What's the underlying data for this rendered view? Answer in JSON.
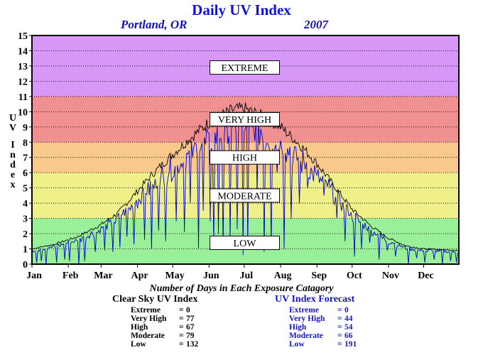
{
  "header": {
    "title": "Daily UV Index",
    "location": "Portland, OR",
    "year": "2007"
  },
  "stats": {
    "title": "Number of Days in Each Exposure Catagory",
    "clear_sky": {
      "title": "Clear Sky UV Index",
      "rows": [
        {
          "label": "Extreme",
          "eq": "=",
          "value": "0"
        },
        {
          "label": "Very High",
          "eq": "=",
          "value": "77"
        },
        {
          "label": "High",
          "eq": "=",
          "value": "67"
        },
        {
          "label": "Moderate",
          "eq": "=",
          "value": "79"
        },
        {
          "label": "Low",
          "eq": "=",
          "value": "132"
        }
      ]
    },
    "forecast": {
      "title": "UV Index Forecast",
      "rows": [
        {
          "label": "Extreme",
          "eq": "=",
          "value": "0"
        },
        {
          "label": "Very High",
          "eq": "=",
          "value": "44"
        },
        {
          "label": "High",
          "eq": "=",
          "value": "54"
        },
        {
          "label": "Moderate",
          "eq": "=",
          "value": "66"
        },
        {
          "label": "Low",
          "eq": "=",
          "value": "191"
        }
      ]
    }
  },
  "chart_data": {
    "type": "line",
    "ylabel": "UV Index",
    "ylim": [
      0,
      15
    ],
    "xlim": [
      1,
      365
    ],
    "months": [
      "Jan",
      "Feb",
      "Mar",
      "Apr",
      "May",
      "Jun",
      "Jul",
      "Aug",
      "Sep",
      "Oct",
      "Nov",
      "Dec"
    ],
    "month_start_days": [
      1,
      32,
      60,
      91,
      121,
      152,
      182,
      213,
      244,
      274,
      305,
      335
    ],
    "y_ticks": [
      0,
      1,
      2,
      3,
      4,
      5,
      6,
      7,
      8,
      9,
      10,
      11,
      12,
      13,
      14,
      15
    ],
    "categories": [
      {
        "label": "LOW",
        "from": 0,
        "to": 3,
        "color": "#99f099"
      },
      {
        "label": "MODERATE",
        "from": 3,
        "to": 6,
        "color": "#f0f08a"
      },
      {
        "label": "HIGH",
        "from": 6,
        "to": 8,
        "color": "#f8c98a"
      },
      {
        "label": "VERY HIGH",
        "from": 8,
        "to": 11,
        "color": "#f09090"
      },
      {
        "label": "EXTREME",
        "from": 11,
        "to": 15,
        "color": "#d898f8"
      }
    ],
    "clear_sky_envelope": {
      "name": "Clear Sky UV Index",
      "color": "#000000",
      "points": [
        [
          1,
          1.0
        ],
        [
          20,
          1.3
        ],
        [
          40,
          1.8
        ],
        [
          60,
          2.6
        ],
        [
          75,
          3.4
        ],
        [
          91,
          4.8
        ],
        [
          105,
          6.0
        ],
        [
          121,
          7.2
        ],
        [
          135,
          8.2
        ],
        [
          152,
          9.3
        ],
        [
          172,
          10.1
        ],
        [
          182,
          10.2
        ],
        [
          200,
          9.6
        ],
        [
          213,
          9.0
        ],
        [
          230,
          7.8
        ],
        [
          244,
          6.6
        ],
        [
          260,
          5.0
        ],
        [
          274,
          3.6
        ],
        [
          290,
          2.5
        ],
        [
          305,
          1.7
        ],
        [
          320,
          1.2
        ],
        [
          335,
          1.0
        ],
        [
          365,
          0.9
        ]
      ]
    },
    "forecast": {
      "name": "UV Index Forecast",
      "color": "#0000cc",
      "dips": [
        [
          5,
          0.1
        ],
        [
          9,
          0.2
        ],
        [
          13,
          0.0
        ],
        [
          22,
          0.1
        ],
        [
          29,
          0.3
        ],
        [
          33,
          0.2
        ],
        [
          41,
          0.0
        ],
        [
          46,
          0.2
        ],
        [
          55,
          0.8
        ],
        [
          63,
          0.9
        ],
        [
          70,
          0.8
        ],
        [
          76,
          1.1
        ],
        [
          82,
          1.8
        ],
        [
          88,
          1.3
        ],
        [
          97,
          1.6
        ],
        [
          103,
          1.0
        ],
        [
          109,
          2.2
        ],
        [
          115,
          1.5
        ],
        [
          124,
          2.8
        ],
        [
          131,
          2.1
        ],
        [
          136,
          4.0
        ],
        [
          143,
          1.0
        ],
        [
          147,
          3.5
        ],
        [
          153,
          2.8
        ],
        [
          156,
          1.2
        ],
        [
          160,
          2.0
        ],
        [
          164,
          1.0
        ],
        [
          170,
          1.5
        ],
        [
          176,
          2.3
        ],
        [
          181,
          0.6
        ],
        [
          185,
          1.0
        ],
        [
          193,
          4.5
        ],
        [
          199,
          0.8
        ],
        [
          205,
          1.0
        ],
        [
          210,
          6.0
        ],
        [
          216,
          1.0
        ],
        [
          222,
          3.0
        ],
        [
          229,
          4.0
        ],
        [
          236,
          5.0
        ],
        [
          243,
          6.0
        ],
        [
          250,
          4.5
        ],
        [
          261,
          3.0
        ],
        [
          268,
          1.5
        ],
        [
          276,
          0.5
        ],
        [
          282,
          1.0
        ],
        [
          289,
          1.4
        ],
        [
          297,
          0.3
        ],
        [
          304,
          0.9
        ],
        [
          311,
          0.5
        ],
        [
          316,
          1.2
        ],
        [
          322,
          0.0
        ],
        [
          329,
          0.4
        ],
        [
          336,
          0.1
        ],
        [
          344,
          0.3
        ],
        [
          351,
          0.0
        ],
        [
          358,
          0.2
        ],
        [
          363,
          0.1
        ]
      ]
    }
  }
}
